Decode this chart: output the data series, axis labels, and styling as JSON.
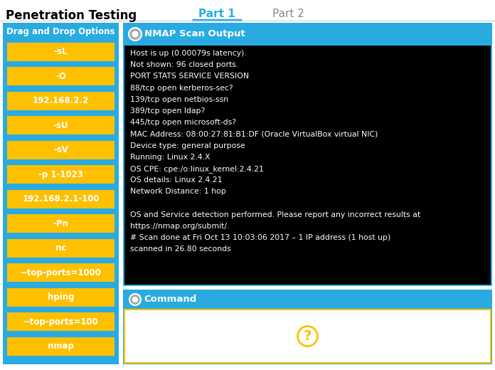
{
  "title": "Penetration Testing",
  "tab1": "Part 1",
  "tab2": "Part 2",
  "left_panel_title": "Drag and Drop Options",
  "left_buttons": [
    "-sL",
    "-O",
    "192.168.2.2",
    "-sU",
    "-sV",
    "-p 1-1023",
    "192.168.2.1-100",
    "-Pn",
    "nc",
    "--top-ports=1000",
    "hping",
    "--top-ports=100",
    "nmap"
  ],
  "nmap_title": "NMAP Scan Output",
  "nmap_output": [
    "Host is up (0.00079s latency).",
    "Not shown: 96 closed ports.",
    "PORT STATS SERVICE VERSION",
    "88/tcp open kerberos-sec?",
    "139/tcp open netbios-ssn",
    "389/tcp open ldap?",
    "445/tcp open microsoft-ds?",
    "MAC Address: 08:00:27:81:B1:DF (Oracle VirtualBox virtual NIC)",
    "Device type: general purpose",
    "Running: Linux 2.4.X",
    "OS CPE: cpe:/o:linux_kernel:2.4.21",
    "OS details: Linux 2.4.21",
    "Network Distance: 1 hop",
    "",
    "OS and Service detection performed. Please report any incorrect results at",
    "https://nmap.org/submit/.",
    "# Scan done at Fri Oct 13 10:03:06 2017 – 1 IP address (1 host up)",
    "scanned in 26.80 seconds"
  ],
  "command_title": "Command",
  "bg_color": "#ffffff",
  "left_panel_bg": "#29ABE2",
  "left_panel_title_color": "#ffffff",
  "button_color": "#FFC000",
  "button_text_color": "#ffffff",
  "nmap_bg": "#000000",
  "nmap_text_color": "#ffffff",
  "nmap_header_bg": "#29ABE2",
  "nmap_border_color": "#29ABE2",
  "command_bg": "#ffffff",
  "command_header_bg": "#29ABE2",
  "command_border_color": "#FFC000",
  "question_mark_color": "#FFC000",
  "tab_active_color": "#29ABE2",
  "tab_inactive_color": "#888888",
  "title_color": "#000000",
  "separator_color": "#cccccc"
}
